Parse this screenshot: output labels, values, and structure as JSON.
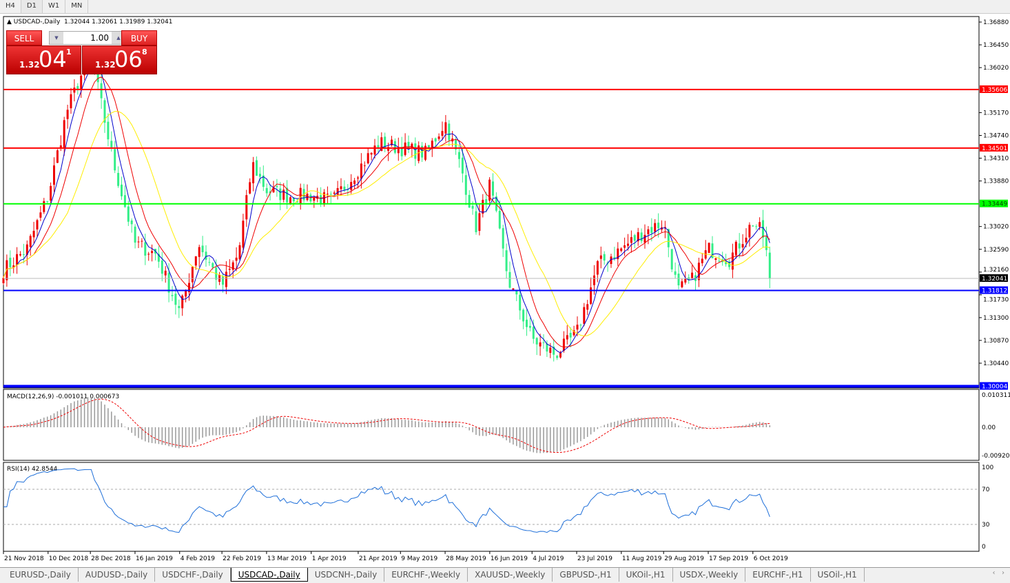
{
  "timeframes": [
    {
      "label": "H4",
      "active": false
    },
    {
      "label": "D1",
      "active": true
    },
    {
      "label": "W1",
      "active": false
    },
    {
      "label": "MN",
      "active": false
    }
  ],
  "chart_header": {
    "title": "USDCAD-,Daily",
    "ohlc": "1.32044 1.32061 1.31989 1.32041"
  },
  "one_click": {
    "sell_label": "SELL",
    "buy_label": "BUY",
    "lot": "1.00",
    "sell_small": "1.32",
    "sell_big": "04",
    "sell_pip": "1",
    "buy_small": "1.32",
    "buy_big": "06",
    "buy_pip": "8"
  },
  "chart_data": [
    {
      "type": "candlestick",
      "symbol": "USDCAD-",
      "timeframe": "Daily",
      "price_ticks": [
        "1.36880",
        "1.36450",
        "1.36020",
        "1.35170",
        "1.34740",
        "1.34310",
        "1.33880",
        "1.33020",
        "1.32590",
        "1.32160",
        "1.31730",
        "1.31300",
        "1.30870",
        "1.30440"
      ],
      "ylim": [
        1.2995,
        1.37
      ],
      "date_ticks": [
        "21 Nov 2018",
        "10 Dec 2018",
        "28 Dec 2018",
        "16 Jan 2019",
        "4 Feb 2019",
        "22 Feb 2019",
        "13 Mar 2019",
        "1 Apr 2019",
        "21 Apr 2019",
        "9 May 2019",
        "28 May 2019",
        "16 Jun 2019",
        "4 Jul 2019",
        "23 Jul 2019",
        "11 Aug 2019",
        "29 Aug 2019",
        "17 Sep 2019",
        "6 Oct 2019"
      ],
      "approx_closes": [
        [
          "2018-11-21",
          1.322
        ],
        [
          "2018-12-01",
          1.326
        ],
        [
          "2018-12-10",
          1.336
        ],
        [
          "2018-12-18",
          1.352
        ],
        [
          "2018-12-28",
          1.363
        ],
        [
          "2019-01-07",
          1.342
        ],
        [
          "2019-01-16",
          1.327
        ],
        [
          "2019-01-25",
          1.325
        ],
        [
          "2019-02-04",
          1.314
        ],
        [
          "2019-02-12",
          1.327
        ],
        [
          "2019-02-22",
          1.319
        ],
        [
          "2019-03-01",
          1.325
        ],
        [
          "2019-03-07",
          1.342
        ],
        [
          "2019-03-13",
          1.337
        ],
        [
          "2019-03-22",
          1.336
        ],
        [
          "2019-04-01",
          1.336
        ],
        [
          "2019-04-10",
          1.335
        ],
        [
          "2019-04-21",
          1.341
        ],
        [
          "2019-04-30",
          1.346
        ],
        [
          "2019-05-09",
          1.345
        ],
        [
          "2019-05-20",
          1.344
        ],
        [
          "2019-05-28",
          1.35
        ],
        [
          "2019-06-04",
          1.341
        ],
        [
          "2019-06-10",
          1.33
        ],
        [
          "2019-06-16",
          1.338
        ],
        [
          "2019-06-24",
          1.32
        ],
        [
          "2019-07-04",
          1.309
        ],
        [
          "2019-07-14",
          1.306
        ],
        [
          "2019-07-23",
          1.31
        ],
        [
          "2019-08-01",
          1.323
        ],
        [
          "2019-08-11",
          1.326
        ],
        [
          "2019-08-20",
          1.329
        ],
        [
          "2019-08-29",
          1.331
        ],
        [
          "2019-09-04",
          1.318
        ],
        [
          "2019-09-10",
          1.32
        ],
        [
          "2019-09-17",
          1.326
        ],
        [
          "2019-09-26",
          1.324
        ],
        [
          "2019-10-06",
          1.331
        ],
        [
          "2019-10-10",
          1.329
        ],
        [
          "2019-10-14",
          1.3204
        ]
      ],
      "current_price": "1.32041",
      "horizontal_lines": [
        {
          "price": "1.35606",
          "color": "#ff0000"
        },
        {
          "price": "1.34501",
          "color": "#ff0000"
        },
        {
          "price": "1.33449",
          "color": "#00ff00"
        },
        {
          "price": "1.31812",
          "color": "#0000ff"
        },
        {
          "price": "1.30004",
          "color": "#0000ff"
        }
      ],
      "moving_averages": [
        {
          "color": "#0000cc"
        },
        {
          "color": "#ee0000"
        },
        {
          "color": "#ffee00"
        }
      ],
      "colors": {
        "bull": "#ee0000",
        "bear": "#33ee88"
      }
    },
    {
      "type": "histogram",
      "label": "MACD(12,26,9) -0.001011 0.000673",
      "ticks": [
        "0.010311",
        "0.00",
        "-0.009203"
      ],
      "ylim": [
        -0.009203,
        0.010311
      ],
      "signal_color": "#ee0000"
    },
    {
      "type": "line",
      "label": "RSI(14) 42.8544",
      "ticks": [
        "100",
        "70",
        "30",
        "0"
      ],
      "ylim": [
        0,
        100
      ],
      "levels": [
        70,
        30
      ],
      "color": "#1e6fd9"
    }
  ],
  "tabs": [
    {
      "label": "EURUSD-,Daily"
    },
    {
      "label": "AUDUSD-,Daily"
    },
    {
      "label": "USDCHF-,Daily"
    },
    {
      "label": "USDCAD-,Daily",
      "active": true
    },
    {
      "label": "USDCNH-,Daily"
    },
    {
      "label": "EURCHF-,Weekly"
    },
    {
      "label": "XAUUSD-,Weekly"
    },
    {
      "label": "GBPUSD-,H1"
    },
    {
      "label": "UKOil-,H1"
    },
    {
      "label": "USDX-,Weekly"
    },
    {
      "label": "EURCHF-,H1"
    },
    {
      "label": "USOil-,H1"
    }
  ]
}
